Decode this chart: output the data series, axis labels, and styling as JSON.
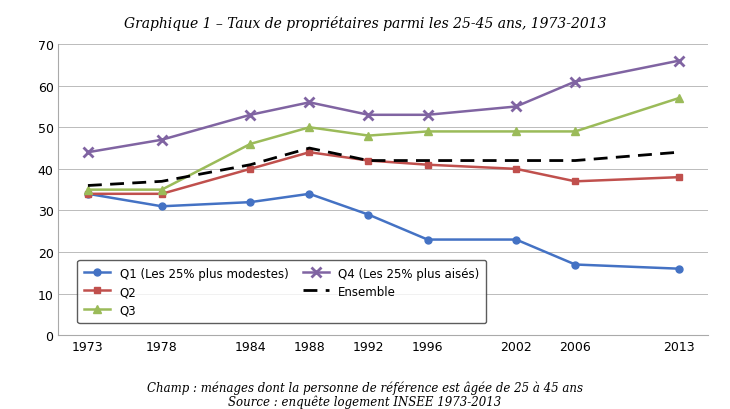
{
  "title": "Graphique 1 – Taux de propriétaires parmi les 25-45 ans, 1973-2013",
  "footer_line1": "Champ : ménages dont la personne de référence est âgée de 25 à 45 ans",
  "footer_line2": "Source : enquête logement INSEE 1973-2013",
  "years": [
    1973,
    1978,
    1984,
    1988,
    1992,
    1996,
    2002,
    2006,
    2013
  ],
  "Q1": [
    34,
    31,
    32,
    34,
    29,
    23,
    23,
    17,
    16
  ],
  "Q2": [
    34,
    34,
    40,
    44,
    42,
    41,
    40,
    37,
    38
  ],
  "Q3": [
    35,
    35,
    46,
    50,
    48,
    49,
    49,
    49,
    57
  ],
  "Q4": [
    44,
    47,
    53,
    56,
    53,
    53,
    55,
    61,
    66
  ],
  "Ensemble": [
    36,
    37,
    41,
    45,
    42,
    42,
    42,
    42,
    44
  ],
  "ylim": [
    0,
    70
  ],
  "yticks": [
    0,
    10,
    20,
    30,
    40,
    50,
    60,
    70
  ],
  "color_Q1": "#4472C4",
  "color_Q2": "#C0504D",
  "color_Q3": "#9BBB59",
  "color_Q4": "#8064A2",
  "color_Ensemble": "#000000",
  "bg_color": "#FFFFFF",
  "grid_color": "#BBBBBB",
  "label_Q1": "Q1 (Les 25% plus modestes)",
  "label_Q2": "Q2",
  "label_Q3": "Q3",
  "label_Q4": "Q4 (Les 25% plus aisés)",
  "label_Ensemble": "Ensemble"
}
